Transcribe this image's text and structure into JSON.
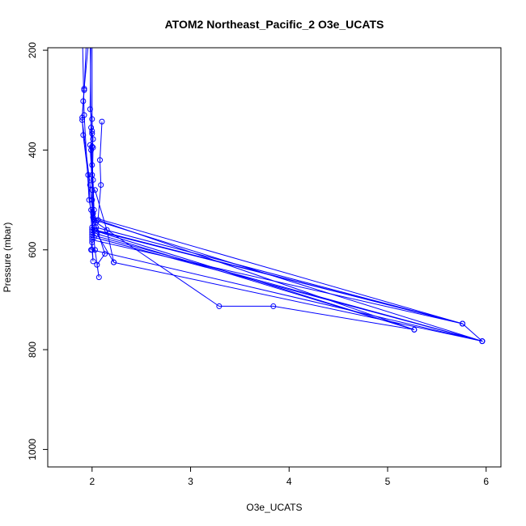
{
  "chart_data": {
    "type": "line",
    "title": "ATOM2 Northeast_Pacific_2 O3e_UCATS",
    "xlabel": "O3e_UCATS",
    "ylabel": "Pressure (mbar)",
    "xlim": [
      1.55,
      6.15
    ],
    "ylim": [
      1035,
      195
    ],
    "y_reversed": true,
    "x_ticks": [
      2,
      3,
      4,
      5,
      6
    ],
    "y_ticks": [
      200,
      400,
      600,
      800,
      1000
    ],
    "line_color": "#0000ff",
    "marker": "open-circle",
    "grid": false,
    "legend": "none",
    "series": [
      {
        "points": [
          [
            1.95,
            150
          ],
          [
            1.92,
            280
          ],
          [
            1.9,
            335
          ],
          [
            1.91,
            370
          ],
          [
            1.96,
            450
          ],
          [
            2.0,
            565
          ],
          [
            2.0,
            570
          ],
          [
            5.96,
            783
          ],
          [
            2.02,
            540
          ],
          [
            1.98,
            390
          ]
        ]
      },
      {
        "points": [
          [
            1.98,
            150
          ],
          [
            1.92,
            277
          ],
          [
            1.91,
            302
          ],
          [
            1.9,
            340
          ],
          [
            1.98,
            470
          ],
          [
            2.01,
            535
          ],
          [
            5.76,
            748
          ],
          [
            2.04,
            555
          ],
          [
            2.0,
            480
          ],
          [
            1.99,
            355
          ]
        ]
      },
      {
        "points": [
          [
            1.99,
            150
          ],
          [
            1.98,
            318
          ],
          [
            2.0,
            338
          ],
          [
            2.0,
            362
          ],
          [
            2.01,
            378
          ],
          [
            2.0,
            393
          ],
          [
            2.0,
            430
          ],
          [
            2.01,
            460
          ],
          [
            2.02,
            520
          ],
          [
            2.0,
            560
          ],
          [
            5.27,
            760
          ],
          [
            3.84,
            713
          ],
          [
            3.29,
            713
          ],
          [
            2.04,
            545
          ]
        ]
      },
      {
        "points": [
          [
            2.0,
            150
          ],
          [
            2.0,
            367
          ],
          [
            2.01,
            395
          ],
          [
            2.0,
            500
          ],
          [
            2.01,
            527
          ],
          [
            2.0,
            575
          ],
          [
            2.0,
            585
          ],
          [
            2.01,
            623
          ],
          [
            2.0,
            600
          ],
          [
            5.96,
            783
          ],
          [
            2.02,
            575
          ],
          [
            2.0,
            555
          ]
        ]
      },
      {
        "points": [
          [
            1.98,
            150
          ],
          [
            1.99,
            400
          ],
          [
            2.0,
            450
          ],
          [
            2.02,
            540
          ],
          [
            2.13,
            608
          ],
          [
            2.05,
            630
          ],
          [
            2.07,
            655
          ],
          [
            2.03,
            600
          ],
          [
            1.99,
            520
          ]
        ]
      },
      {
        "points": [
          [
            2.1,
            343
          ],
          [
            2.08,
            420
          ],
          [
            2.09,
            470
          ],
          [
            2.06,
            540
          ],
          [
            5.27,
            760
          ],
          [
            2.05,
            568
          ],
          [
            2.22,
            625
          ],
          [
            2.15,
            560
          ],
          [
            2.03,
            480
          ]
        ]
      },
      {
        "points": [
          [
            1.9,
            150
          ],
          [
            1.92,
            330
          ],
          [
            1.97,
            500
          ],
          [
            2.03,
            560
          ],
          [
            5.76,
            748
          ],
          [
            2.0,
            580
          ],
          [
            1.99,
            600
          ]
        ]
      },
      {
        "points": [
          [
            2.22,
            625
          ],
          [
            5.96,
            783
          ],
          [
            5.76,
            748
          ],
          [
            2.04,
            562
          ]
        ]
      }
    ]
  }
}
